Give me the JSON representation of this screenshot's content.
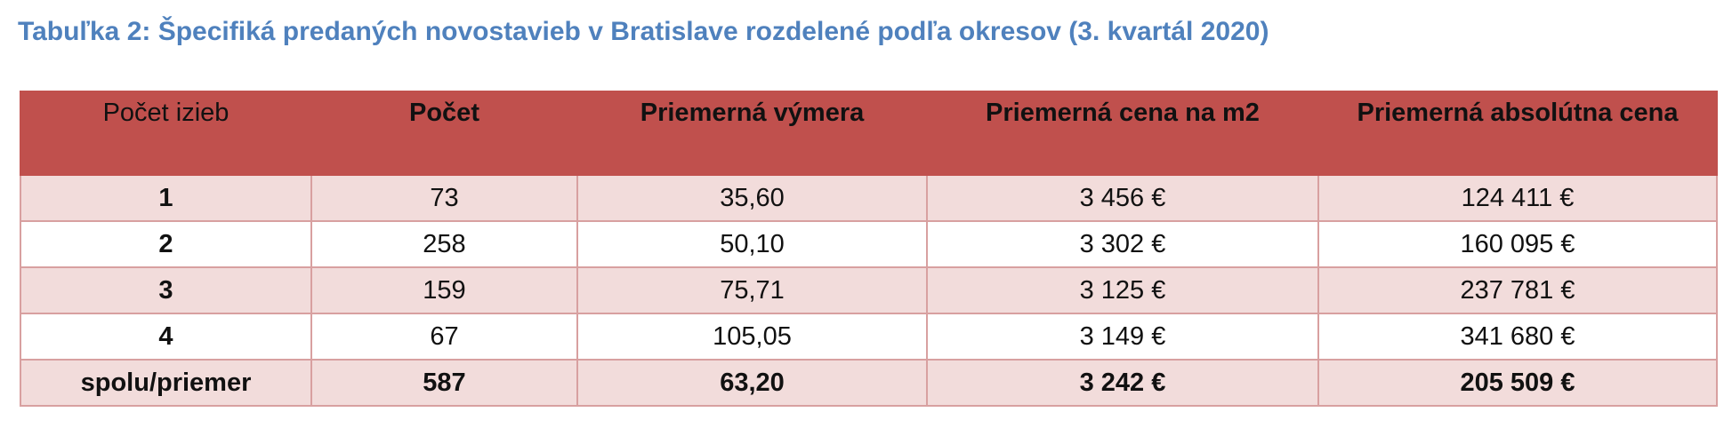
{
  "caption": "Tabuľka 2: Špecifiká predaných novostavieb v Bratislave rozdelené podľa okresov (3. kvartál 2020)",
  "colors": {
    "caption": "#4f81bd",
    "header_bg": "#c0504d",
    "row_shade": "#f2dcdb",
    "border": "#d8a0a0"
  },
  "table": {
    "headers": [
      "Počet izieb",
      "Počet",
      "Priemerná výmera",
      "Priemerná cena na m2",
      "Priemerná absolútna cena"
    ],
    "rows": [
      [
        "1",
        "73",
        "35,60",
        "3 456 €",
        "124 411 €"
      ],
      [
        "2",
        "258",
        "50,10",
        "3 302 €",
        "160 095 €"
      ],
      [
        "3",
        "159",
        "75,71",
        "3 125 €",
        "237 781 €"
      ],
      [
        "4",
        "67",
        "105,05",
        "3 149 €",
        "341 680 €"
      ],
      [
        "spolu/priemer",
        "587",
        "63,20",
        "3 242 €",
        "205 509 €"
      ]
    ]
  }
}
